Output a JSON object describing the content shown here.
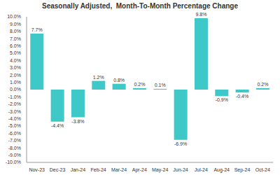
{
  "chart_data": {
    "type": "bar",
    "title": "Seasonally Adjusted,  Month-To-Month Percentage Change",
    "categories": [
      "Nov-23",
      "Dec-23",
      "Jan-24",
      "Feb-24",
      "Mar-24",
      "Apr-24",
      "May-24",
      "Jun-24",
      "Jul-24",
      "Aug-24",
      "Sep-24",
      "Oct-24"
    ],
    "values": [
      7.7,
      -4.4,
      -3.8,
      1.2,
      0.8,
      0.2,
      0.1,
      -6.9,
      9.8,
      -0.9,
      -0.4,
      0.2
    ],
    "value_labels": [
      "7.7%",
      "-4.4%",
      "-3.8%",
      "1.2%",
      "0.8%",
      "0.2%",
      "0.1%",
      "-6.9%",
      "9.8%",
      "-0.9%",
      "-0.4%",
      "0.2%"
    ],
    "color": "#3fc8c8",
    "ylim": [
      -10,
      10
    ],
    "yticks": [
      {
        "value": -10,
        "label": "-10.0%"
      },
      {
        "value": -9,
        "label": "-9.0%"
      },
      {
        "value": -8,
        "label": "-8.0%"
      },
      {
        "value": -7,
        "label": "-7.0%"
      },
      {
        "value": -6,
        "label": "-6.0%"
      },
      {
        "value": -5,
        "label": "-5.0%"
      },
      {
        "value": -4,
        "label": "-4.0%"
      },
      {
        "value": -3,
        "label": "-3.0%"
      },
      {
        "value": -2,
        "label": "-2.0%"
      },
      {
        "value": -1,
        "label": "-1.0%"
      },
      {
        "value": 0,
        "label": "0.0%"
      },
      {
        "value": 1,
        "label": "1.0%"
      },
      {
        "value": 2,
        "label": "2.0%"
      },
      {
        "value": 3,
        "label": "3.0%"
      },
      {
        "value": 4,
        "label": "4.0%"
      },
      {
        "value": 5,
        "label": "5.0%"
      },
      {
        "value": 6,
        "label": "6.0%"
      },
      {
        "value": 7,
        "label": "7.0%"
      },
      {
        "value": 8,
        "label": "8.0%"
      },
      {
        "value": 9,
        "label": "9.0%"
      },
      {
        "value": 10,
        "label": "10.0%"
      }
    ],
    "grid": false,
    "data_labels": true
  }
}
